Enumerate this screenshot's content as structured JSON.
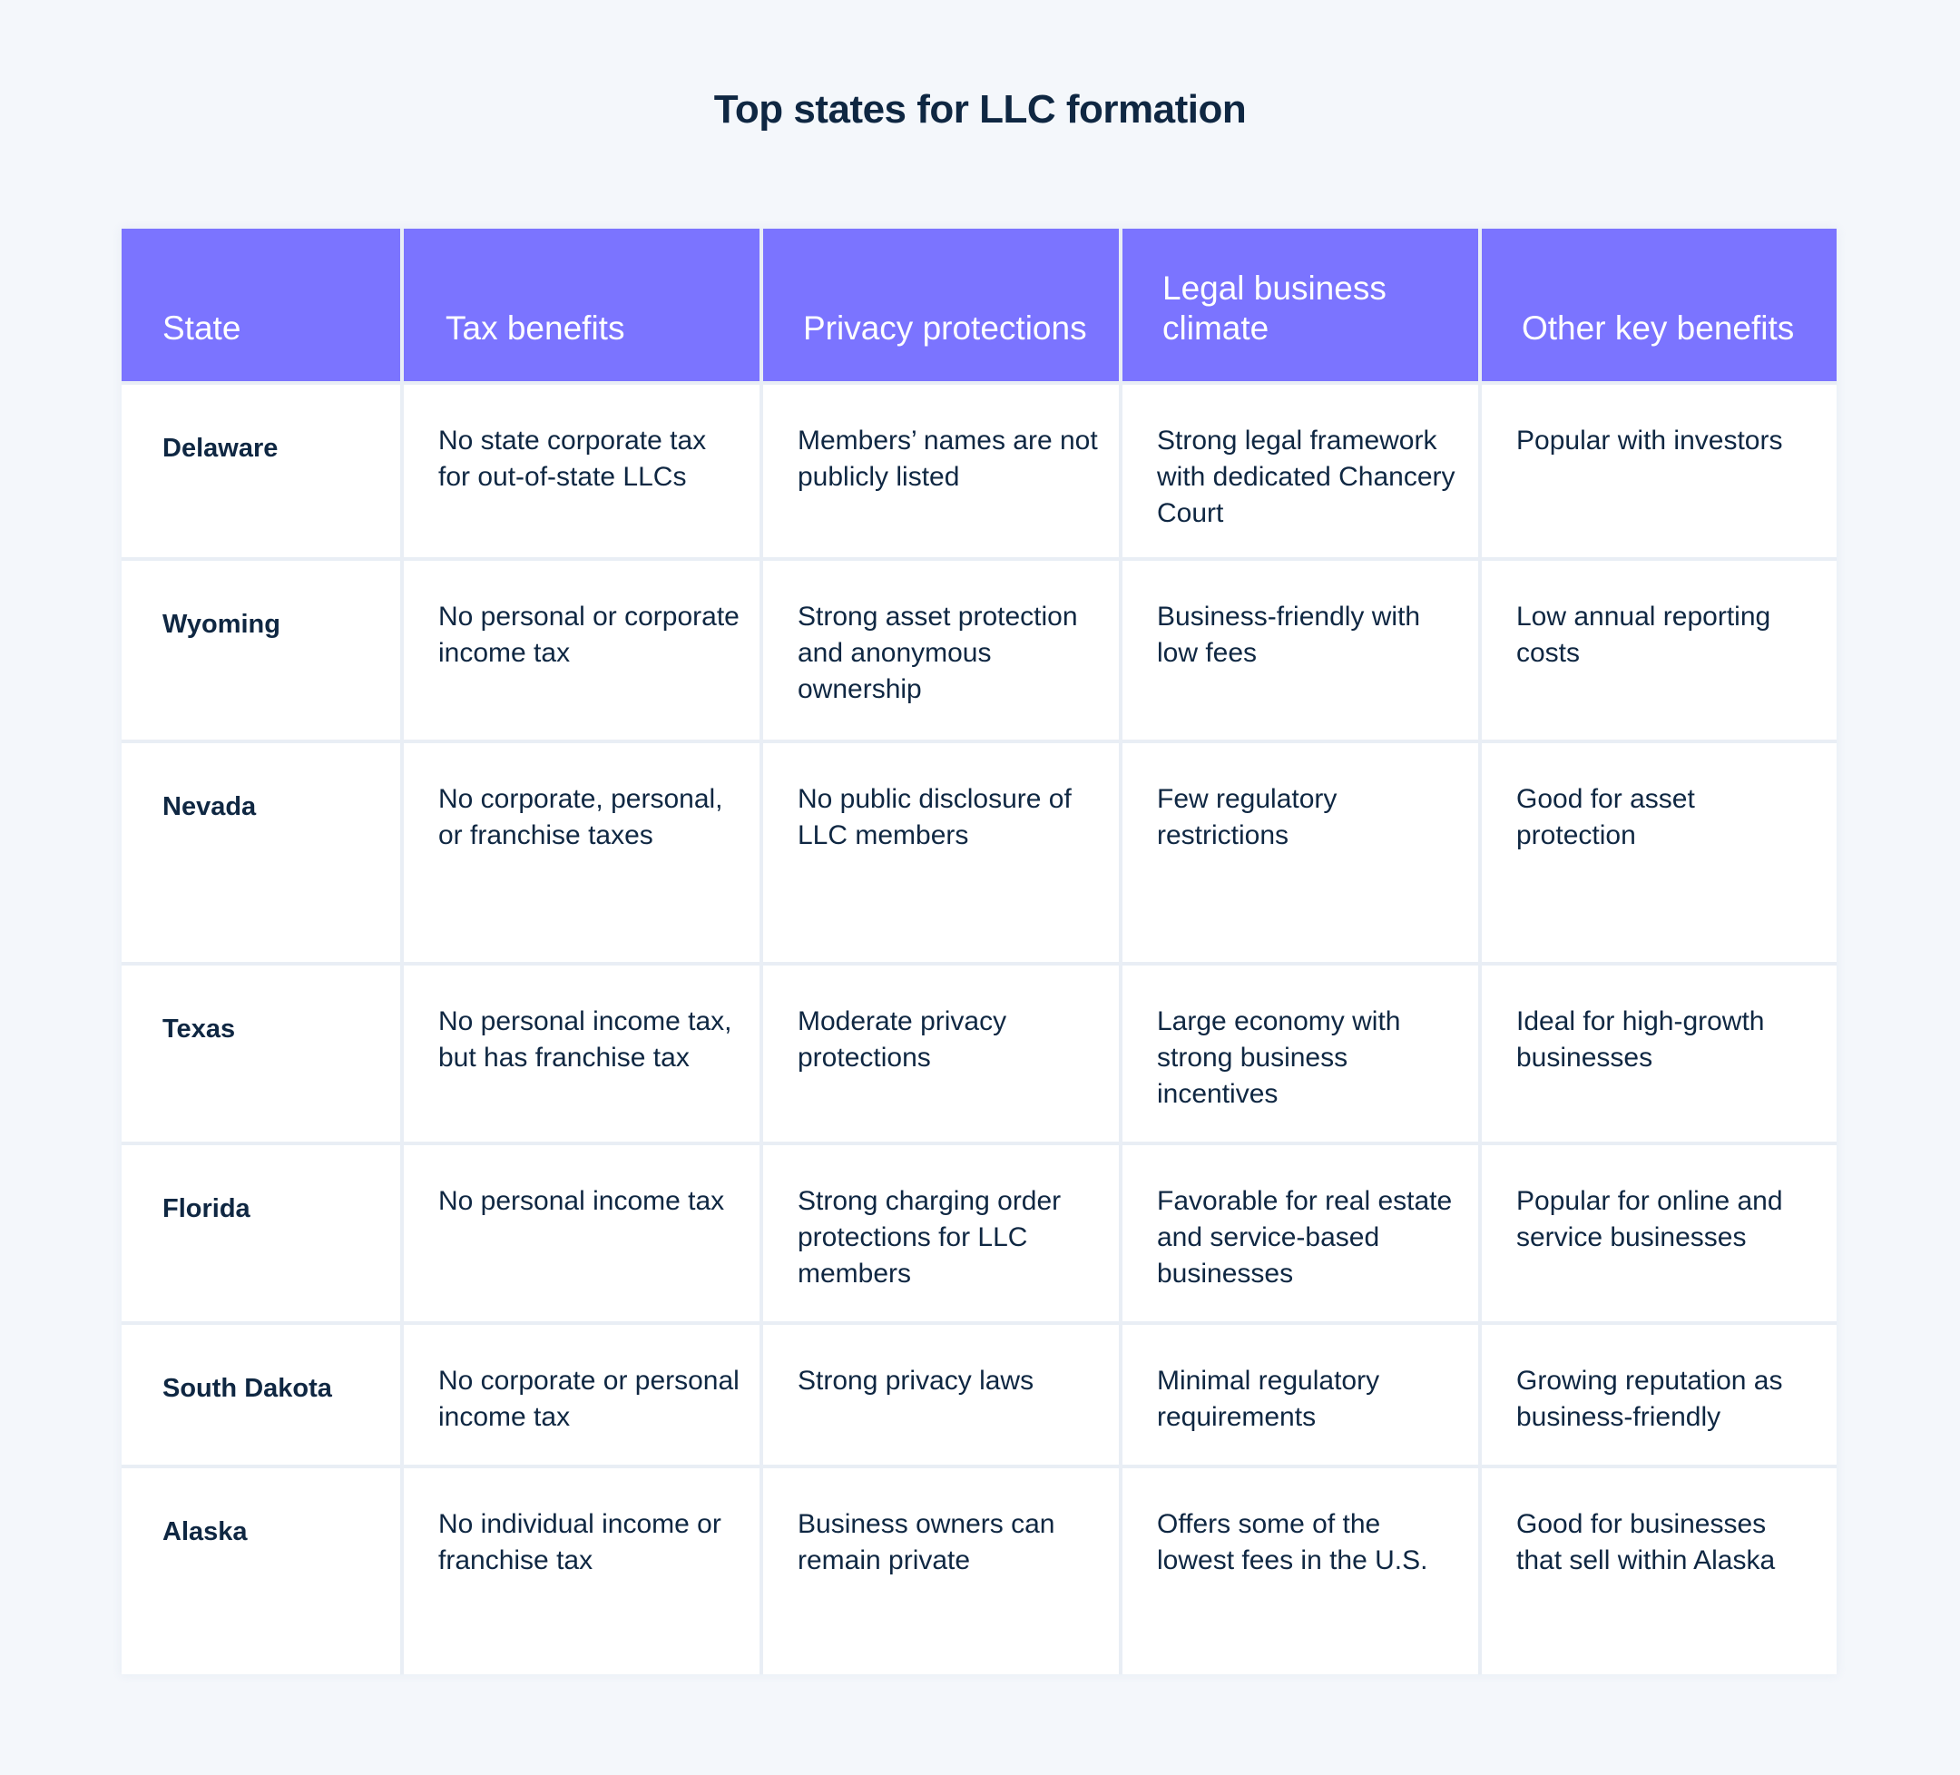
{
  "title": "Top states for LLC formation",
  "colors": {
    "background": "#F4F7FB",
    "header_bg": "#7B74FF",
    "header_text": "#FFFFFF",
    "body_text": "#0F2742",
    "grid_lines": "#E9EEF5",
    "cell_bg": "#FFFFFF"
  },
  "table": {
    "headers": [
      "State",
      "Tax benefits",
      "Privacy protections",
      "Legal business climate",
      "Other key benefits"
    ],
    "rows": [
      {
        "state": "Delaware",
        "tax": "No state corporate tax for out-of-state LLCs",
        "privacy": "Members’ names are not publicly listed",
        "legal": "Strong legal framework with dedicated Chancery Court",
        "other": "Popular with investors"
      },
      {
        "state": "Wyoming",
        "tax": "No personal or corporate income tax",
        "privacy": "Strong asset protection and anonymous ownership",
        "legal": "Business-friendly with low fees",
        "other": "Low annual reporting costs"
      },
      {
        "state": "Nevada",
        "tax": "No corporate, personal, or franchise taxes",
        "privacy": "No public disclosure of LLC members",
        "legal": "Few regulatory restrictions",
        "other": "Good for asset protection"
      },
      {
        "state": "Texas",
        "tax": "No personal income tax, but has franchise tax",
        "privacy": "Moderate privacy protections",
        "legal": "Large economy with strong business incentives",
        "other": "Ideal for high-growth businesses"
      },
      {
        "state": "Florida",
        "tax": "No personal income tax",
        "privacy": "Strong charging order protections for LLC members",
        "legal": "Favorable for real estate and service-based businesses",
        "other": "Popular for online and service businesses"
      },
      {
        "state": "South Dakota",
        "tax": "No corporate or personal income tax",
        "privacy": "Strong privacy laws",
        "legal": "Minimal regulatory requirements",
        "other": "Growing reputation as business-friendly"
      },
      {
        "state": "Alaska",
        "tax": "No individual income or franchise tax",
        "privacy": "Business owners can remain private",
        "legal": "Offers some of the lowest fees in the U.S.",
        "other": "Good for businesses that sell within Alaska"
      }
    ]
  }
}
